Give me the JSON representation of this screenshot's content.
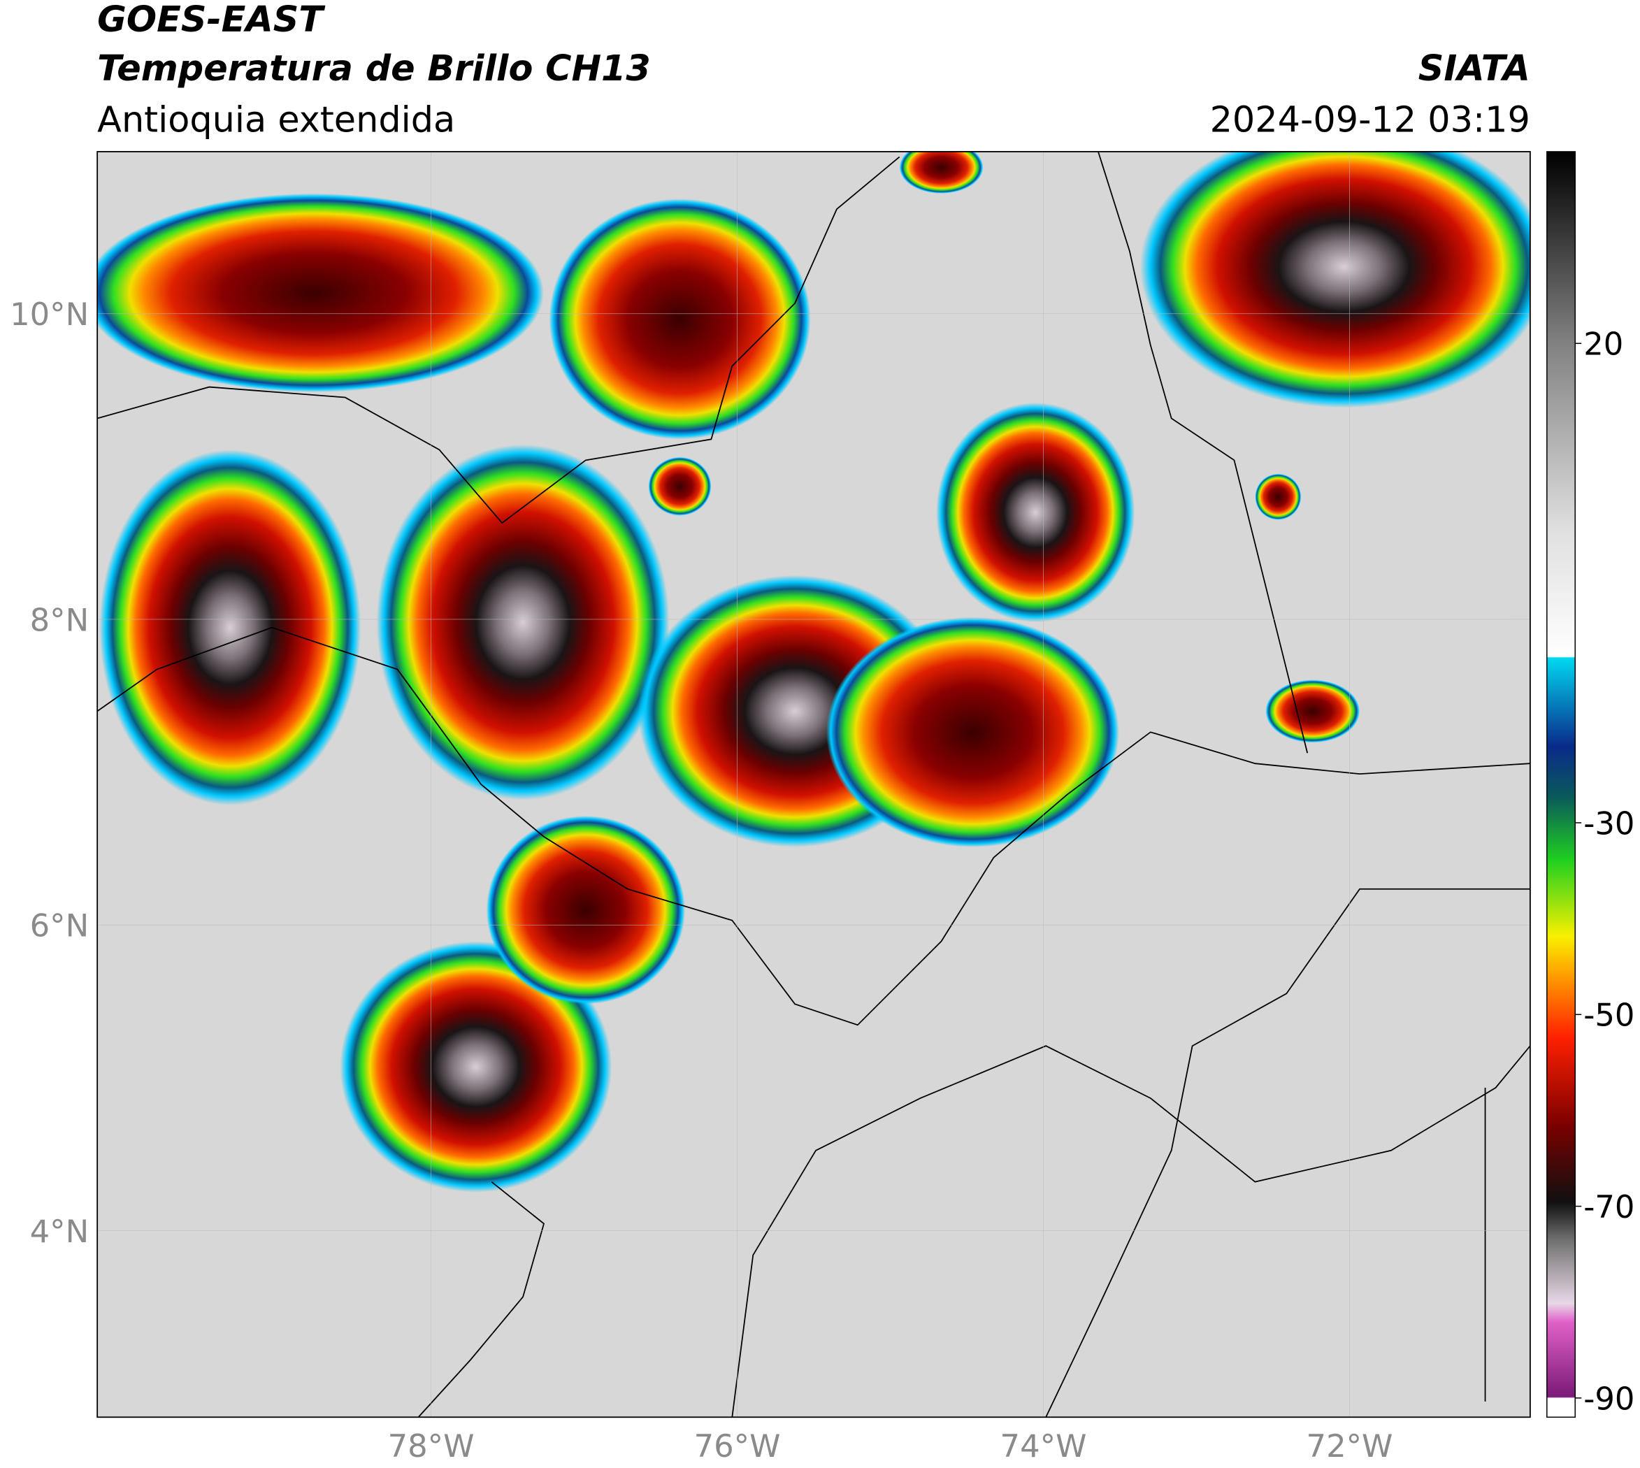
{
  "header": {
    "title_line1": "GOES-EAST",
    "title_line2": "Temperatura de Brillo CH13",
    "subtitle": "Antioquia extendida",
    "source": "SIATA",
    "datetime": "2024-09-12 03:19"
  },
  "map": {
    "xlim": [
      -80.18,
      -70.82
    ],
    "ylim": [
      2.78,
      11.06
    ],
    "xticks": [
      {
        "value": -78,
        "label": "78°W"
      },
      {
        "value": -76,
        "label": "76°W"
      },
      {
        "value": -74,
        "label": "74°W"
      },
      {
        "value": -72,
        "label": "72°W"
      }
    ],
    "yticks": [
      {
        "value": 10,
        "label": "10°N"
      },
      {
        "value": 8,
        "label": "8°N"
      },
      {
        "value": 6,
        "label": "6°N"
      },
      {
        "value": 4,
        "label": "4°N"
      }
    ]
  },
  "colorbar": {
    "lim": [
      -92,
      40
    ],
    "ticks": [
      20,
      -30,
      -50,
      -70,
      -90
    ]
  }
}
